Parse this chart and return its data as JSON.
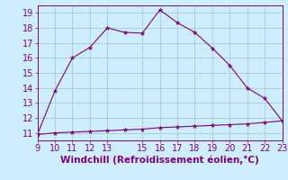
{
  "x": [
    9,
    10,
    11,
    12,
    13,
    14,
    15,
    16,
    17,
    18,
    19,
    20,
    21,
    22,
    23
  ],
  "y_upper": [
    10.9,
    13.8,
    16.0,
    16.7,
    18.0,
    17.7,
    17.65,
    19.2,
    18.35,
    17.7,
    16.65,
    15.5,
    14.0,
    13.3,
    11.8
  ],
  "y_lower": [
    10.9,
    11.0,
    11.05,
    11.1,
    11.15,
    11.2,
    11.25,
    11.35,
    11.4,
    11.45,
    11.5,
    11.55,
    11.6,
    11.7,
    11.8
  ],
  "line_color": "#800080",
  "bg_color": "#cceeff",
  "grid_color": "#aacccc",
  "xlabel": "Windchill (Refroidissement éolien,°C)",
  "xlim": [
    9,
    23
  ],
  "ylim": [
    10.5,
    19.5
  ],
  "yticks": [
    11,
    12,
    13,
    14,
    15,
    16,
    17,
    18,
    19
  ],
  "xticks": [
    9,
    10,
    11,
    12,
    13,
    15,
    16,
    17,
    18,
    19,
    20,
    21,
    22,
    23
  ],
  "tick_fontsize": 7,
  "xlabel_fontsize": 7.5
}
